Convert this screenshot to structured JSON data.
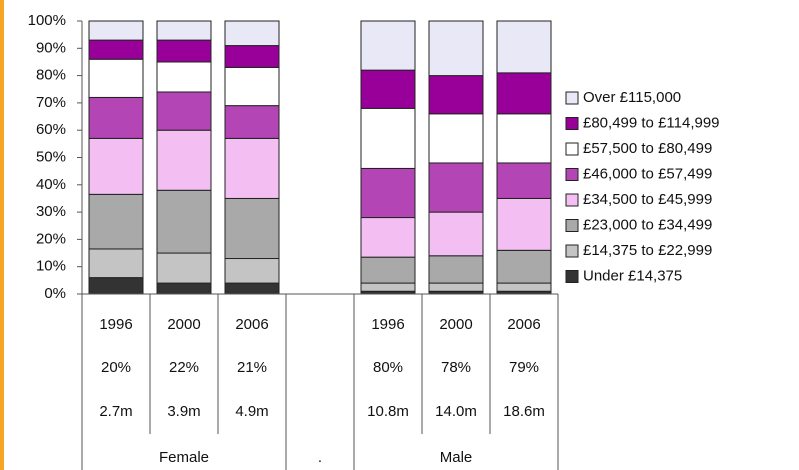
{
  "chart_data": {
    "type": "stacked_bar",
    "categories": [
      "1996",
      "2000",
      "2006",
      null,
      "1996",
      "2000",
      "2006"
    ],
    "series": [
      {
        "name": "Under £14,375",
        "color": "#333333",
        "values": [
          6,
          4,
          4,
          null,
          1,
          1,
          1
        ]
      },
      {
        "name": "£14,375 to £22,999",
        "color": "#c4c4c4",
        "values": [
          10.5,
          11,
          9,
          null,
          3,
          3,
          3
        ]
      },
      {
        "name": "£23,000 to £34,499",
        "color": "#a9a9a9",
        "values": [
          20,
          23,
          22,
          null,
          9.5,
          10,
          12
        ]
      },
      {
        "name": "£34,500 to £45,999",
        "color": "#f3bff3",
        "values": [
          20.5,
          22,
          22,
          null,
          14.5,
          16,
          19
        ]
      },
      {
        "name": "£46,000 to £57,499",
        "color": "#b445b4",
        "values": [
          15,
          14,
          12,
          null,
          18,
          18,
          13
        ]
      },
      {
        "name": "£57,500 to £80,499",
        "color": "#ffffff",
        "values": [
          14,
          11,
          14,
          null,
          22,
          18,
          18
        ]
      },
      {
        "name": "£80,499 to £114,999",
        "color": "#990099",
        "values": [
          7,
          8,
          8,
          null,
          14,
          14,
          15
        ]
      },
      {
        "name": "Over £115,000",
        "color": "#e8e8f6",
        "values": [
          7,
          7,
          9,
          null,
          18,
          20,
          19
        ]
      }
    ],
    "table_rows": [
      [
        "20%",
        "22%",
        "21%",
        null,
        "80%",
        "78%",
        "79%"
      ],
      [
        "2.7m",
        "3.9m",
        "4.9m",
        null,
        "10.8m",
        "14.0m",
        "18.6m"
      ]
    ],
    "groups": [
      "Female",
      ".",
      "Male"
    ],
    "ylim": [
      0,
      100
    ],
    "yticks": [
      {
        "value": 0,
        "label": "0%"
      },
      {
        "value": 10,
        "label": "10%"
      },
      {
        "value": 20,
        "label": "20%"
      },
      {
        "value": 30,
        "label": "30%"
      },
      {
        "value": 40,
        "label": "40%"
      },
      {
        "value": 50,
        "label": "50%"
      },
      {
        "value": 60,
        "label": "60%"
      },
      {
        "value": 70,
        "label": "70%"
      },
      {
        "value": 80,
        "label": "80%"
      },
      {
        "value": 90,
        "label": "90%"
      },
      {
        "value": 100,
        "label": "100%"
      }
    ],
    "grid": false,
    "legend": "right"
  }
}
